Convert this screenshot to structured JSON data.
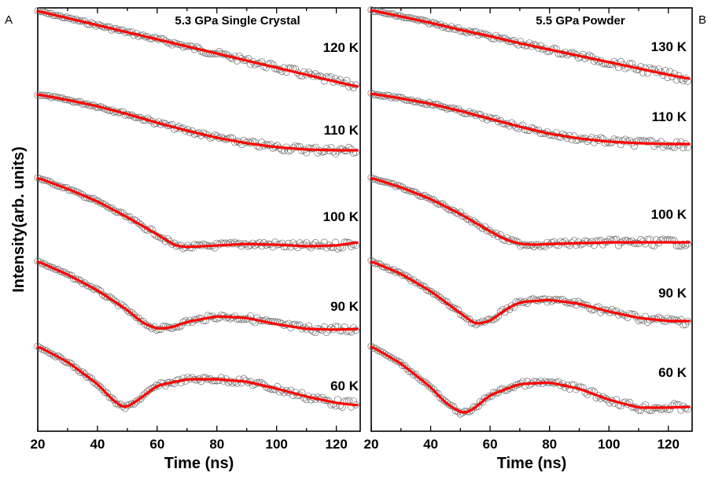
{
  "chart_data": [
    {
      "type": "line",
      "panel_letter": "A",
      "title": "5.3 GPa  Single Crystal",
      "xlabel": "Time (ns)",
      "ylabel": "Intensity(arb. units)",
      "xlim": [
        20,
        128
      ],
      "xticks": [
        20,
        40,
        60,
        80,
        100,
        120
      ],
      "y_tick_labels": false,
      "series": [
        {
          "name": "120 K",
          "x": [
            20,
            30,
            40,
            50,
            60,
            70,
            80,
            90,
            100,
            110,
            120,
            127
          ],
          "y": [
            0.0,
            -0.09,
            -0.18,
            -0.27,
            -0.36,
            -0.45,
            -0.54,
            -0.63,
            -0.72,
            -0.81,
            -0.9,
            -0.96
          ]
        },
        {
          "name": "110 K",
          "x": [
            20,
            30,
            40,
            50,
            60,
            70,
            80,
            90,
            100,
            110,
            120,
            127
          ],
          "y": [
            0.0,
            -0.07,
            -0.15,
            -0.25,
            -0.36,
            -0.46,
            -0.55,
            -0.62,
            -0.67,
            -0.7,
            -0.71,
            -0.71
          ]
        },
        {
          "name": "100 K",
          "x": [
            20,
            30,
            40,
            50,
            60,
            66,
            70,
            80,
            90,
            100,
            110,
            120,
            127
          ],
          "y": [
            0.0,
            -0.14,
            -0.3,
            -0.5,
            -0.72,
            -0.86,
            -0.88,
            -0.86,
            -0.84,
            -0.85,
            -0.87,
            -0.86,
            -0.82
          ]
        },
        {
          "name": "90 K",
          "x": [
            20,
            30,
            40,
            50,
            55,
            60,
            65,
            70,
            80,
            90,
            100,
            110,
            120,
            127
          ],
          "y": [
            0.0,
            -0.17,
            -0.37,
            -0.62,
            -0.78,
            -0.86,
            -0.84,
            -0.77,
            -0.7,
            -0.72,
            -0.8,
            -0.86,
            -0.87,
            -0.86
          ]
        },
        {
          "name": "60 K",
          "x": [
            20,
            30,
            40,
            45,
            49,
            53,
            60,
            70,
            80,
            90,
            100,
            110,
            120,
            127
          ],
          "y": [
            0.0,
            -0.2,
            -0.48,
            -0.68,
            -0.79,
            -0.7,
            -0.5,
            -0.42,
            -0.42,
            -0.45,
            -0.54,
            -0.64,
            -0.72,
            -0.75
          ]
        }
      ]
    },
    {
      "type": "line",
      "panel_letter": "B",
      "title": "5.5 GPa  Powder",
      "xlabel": "Time (ns)",
      "ylabel": "",
      "xlim": [
        20,
        128
      ],
      "xticks": [
        20,
        40,
        60,
        80,
        100,
        120
      ],
      "y_tick_labels": false,
      "series": [
        {
          "name": "130 K",
          "x": [
            20,
            30,
            40,
            50,
            60,
            70,
            80,
            90,
            100,
            110,
            120,
            127
          ],
          "y": [
            0.0,
            -0.08,
            -0.16,
            -0.25,
            -0.33,
            -0.42,
            -0.5,
            -0.58,
            -0.66,
            -0.74,
            -0.82,
            -0.87
          ]
        },
        {
          "name": "110 K",
          "x": [
            20,
            30,
            40,
            50,
            60,
            70,
            80,
            90,
            100,
            110,
            120,
            127
          ],
          "y": [
            0.0,
            -0.06,
            -0.13,
            -0.22,
            -0.32,
            -0.42,
            -0.51,
            -0.57,
            -0.61,
            -0.63,
            -0.64,
            -0.64
          ]
        },
        {
          "name": "100 K",
          "x": [
            20,
            30,
            40,
            50,
            60,
            65,
            70,
            75,
            80,
            90,
            100,
            110,
            120,
            127
          ],
          "y": [
            0.0,
            -0.12,
            -0.27,
            -0.46,
            -0.68,
            -0.78,
            -0.84,
            -0.85,
            -0.84,
            -0.83,
            -0.82,
            -0.82,
            -0.82,
            -0.82
          ]
        },
        {
          "name": "90 K",
          "x": [
            20,
            30,
            40,
            50,
            55,
            60,
            65,
            70,
            80,
            90,
            100,
            110,
            120,
            127
          ],
          "y": [
            0.0,
            -0.16,
            -0.38,
            -0.66,
            -0.8,
            -0.76,
            -0.62,
            -0.52,
            -0.49,
            -0.54,
            -0.64,
            -0.72,
            -0.76,
            -0.76
          ]
        },
        {
          "name": "60 K",
          "x": [
            20,
            30,
            40,
            45,
            50,
            52,
            55,
            60,
            70,
            80,
            90,
            100,
            110,
            120,
            127
          ],
          "y": [
            0.0,
            -0.22,
            -0.52,
            -0.72,
            -0.84,
            -0.85,
            -0.78,
            -0.62,
            -0.48,
            -0.46,
            -0.54,
            -0.68,
            -0.78,
            -0.78,
            -0.77
          ]
        }
      ]
    }
  ],
  "colors": {
    "fit": "#ff0000",
    "data_points": "#6f6f6f",
    "axes": "#000000"
  }
}
